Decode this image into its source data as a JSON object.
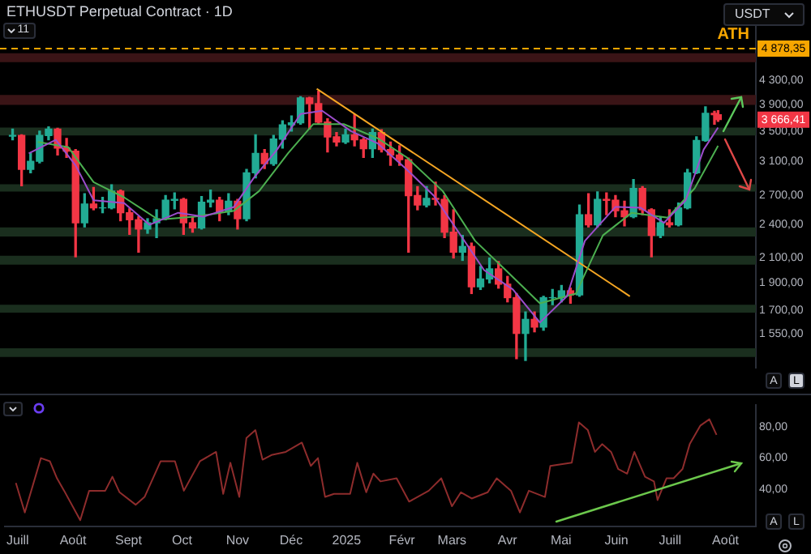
{
  "chart_data": [
    {
      "type": "candlestick",
      "title": "ETHUSDT Perpetual Contract · 1D",
      "log": true,
      "grid": false,
      "legend": false,
      "tick_labels": "y",
      "xlim": [
        "2024-06-24",
        "2025-08-18"
      ],
      "ylim": [
        1350,
        5700
      ],
      "yticks": [
        {
          "value": 1550,
          "label": "1 550,00"
        },
        {
          "value": 1700,
          "label": "1 700,00"
        },
        {
          "value": 1900,
          "label": "1 900,00"
        },
        {
          "value": 2100,
          "label": "2 100,00"
        },
        {
          "value": 2400,
          "label": "2 400,00"
        },
        {
          "value": 2700,
          "label": "2 700,00"
        },
        {
          "value": 3100,
          "label": "3 100,00"
        },
        {
          "value": 3500,
          "label": "3 500,00"
        },
        {
          "value": 3900,
          "label": "3 900,00"
        },
        {
          "value": 4300,
          "label": "4 300,00"
        }
      ],
      "x": [
        "2024-07-01",
        "2024-07-06",
        "2024-07-11",
        "2024-07-16",
        "2024-07-21",
        "2024-07-26",
        "2024-07-31",
        "2024-08-05",
        "2024-08-10",
        "2024-08-15",
        "2024-08-20",
        "2024-08-25",
        "2024-08-30",
        "2024-09-04",
        "2024-09-09",
        "2024-09-14",
        "2024-09-19",
        "2024-09-24",
        "2024-09-29",
        "2024-10-04",
        "2024-10-09",
        "2024-10-14",
        "2024-10-19",
        "2024-10-24",
        "2024-10-29",
        "2024-11-03",
        "2024-11-08",
        "2024-11-13",
        "2024-11-18",
        "2024-11-23",
        "2024-11-28",
        "2024-12-03",
        "2024-12-08",
        "2024-12-13",
        "2024-12-18",
        "2024-12-23",
        "2024-12-28",
        "2025-01-02",
        "2025-01-07",
        "2025-01-12",
        "2025-01-17",
        "2025-01-22",
        "2025-01-27",
        "2025-02-01",
        "2025-02-06",
        "2025-02-11",
        "2025-02-16",
        "2025-02-21",
        "2025-02-26",
        "2025-03-03",
        "2025-03-08",
        "2025-03-13",
        "2025-03-18",
        "2025-03-23",
        "2025-03-28",
        "2025-04-02",
        "2025-04-07",
        "2025-04-12",
        "2025-04-17",
        "2025-04-22",
        "2025-04-27",
        "2025-05-02",
        "2025-05-07",
        "2025-05-12",
        "2025-05-17",
        "2025-05-22",
        "2025-05-27",
        "2025-06-01",
        "2025-06-06",
        "2025-06-11",
        "2025-06-16",
        "2025-06-21",
        "2025-06-26",
        "2025-07-01",
        "2025-07-06",
        "2025-07-11",
        "2025-07-16",
        "2025-07-21",
        "2025-07-26",
        "2025-07-28"
      ],
      "ohlc": [
        [
          3430,
          3530,
          3380,
          3440
        ],
        [
          3440,
          3450,
          2810,
          3000
        ],
        [
          3000,
          3200,
          2960,
          3100
        ],
        [
          3100,
          3500,
          3080,
          3440
        ],
        [
          3440,
          3560,
          3380,
          3530
        ],
        [
          3530,
          3540,
          3180,
          3270
        ],
        [
          3270,
          3400,
          3150,
          3230
        ],
        [
          3230,
          3250,
          2110,
          2420
        ],
        [
          2420,
          2720,
          2380,
          2610
        ],
        [
          2610,
          2790,
          2550,
          2570
        ],
        [
          2570,
          2680,
          2520,
          2570
        ],
        [
          2570,
          2820,
          2560,
          2750
        ],
        [
          2750,
          2760,
          2440,
          2520
        ],
        [
          2520,
          2560,
          2310,
          2450
        ],
        [
          2450,
          2480,
          2150,
          2360
        ],
        [
          2360,
          2460,
          2320,
          2420
        ],
        [
          2420,
          2550,
          2280,
          2460
        ],
        [
          2460,
          2700,
          2450,
          2650
        ],
        [
          2650,
          2730,
          2560,
          2660
        ],
        [
          2660,
          2670,
          2310,
          2420
        ],
        [
          2420,
          2480,
          2330,
          2370
        ],
        [
          2370,
          2690,
          2360,
          2630
        ],
        [
          2630,
          2760,
          2580,
          2650
        ],
        [
          2650,
          2680,
          2440,
          2530
        ],
        [
          2530,
          2720,
          2500,
          2640
        ],
        [
          2640,
          2660,
          2360,
          2460
        ],
        [
          2460,
          3000,
          2440,
          2960
        ],
        [
          2960,
          3450,
          2900,
          3200
        ],
        [
          3200,
          3250,
          3010,
          3070
        ],
        [
          3070,
          3440,
          3050,
          3390
        ],
        [
          3390,
          3650,
          3270,
          3590
        ],
        [
          3590,
          3720,
          3500,
          3620
        ],
        [
          3620,
          4020,
          3600,
          4000
        ],
        [
          4000,
          4010,
          3530,
          3910
        ],
        [
          3910,
          4110,
          3600,
          3630
        ],
        [
          3630,
          3680,
          3220,
          3420
        ],
        [
          3420,
          3480,
          3300,
          3350
        ],
        [
          3350,
          3530,
          3330,
          3450
        ],
        [
          3450,
          3740,
          3300,
          3380
        ],
        [
          3380,
          3400,
          3150,
          3260
        ],
        [
          3260,
          3530,
          3150,
          3480
        ],
        [
          3480,
          3520,
          3220,
          3250
        ],
        [
          3250,
          3350,
          3050,
          3180
        ],
        [
          3180,
          3300,
          3050,
          3120
        ],
        [
          3120,
          3140,
          2150,
          2700
        ],
        [
          2700,
          2800,
          2550,
          2600
        ],
        [
          2600,
          2800,
          2580,
          2670
        ],
        [
          2670,
          2850,
          2600,
          2660
        ],
        [
          2660,
          2700,
          2280,
          2330
        ],
        [
          2330,
          2550,
          2100,
          2150
        ],
        [
          2150,
          2300,
          2080,
          2200
        ],
        [
          2200,
          2230,
          1820,
          1870
        ],
        [
          1870,
          2030,
          1850,
          1930
        ],
        [
          1930,
          2100,
          1900,
          2010
        ],
        [
          2010,
          2070,
          1860,
          1890
        ],
        [
          1890,
          1950,
          1760,
          1790
        ],
        [
          1790,
          1820,
          1400,
          1550
        ],
        [
          1550,
          1690,
          1390,
          1640
        ],
        [
          1640,
          1690,
          1560,
          1590
        ],
        [
          1590,
          1800,
          1570,
          1790
        ],
        [
          1790,
          1850,
          1740,
          1790
        ],
        [
          1790,
          1880,
          1760,
          1840
        ],
        [
          1840,
          1860,
          1750,
          1810
        ],
        [
          1810,
          2600,
          1800,
          2500
        ],
        [
          2500,
          2720,
          2380,
          2400
        ],
        [
          2400,
          2740,
          2380,
          2660
        ],
        [
          2660,
          2730,
          2500,
          2650
        ],
        [
          2650,
          2700,
          2480,
          2540
        ],
        [
          2540,
          2640,
          2390,
          2480
        ],
        [
          2480,
          2880,
          2470,
          2780
        ],
        [
          2780,
          2800,
          2500,
          2550
        ],
        [
          2550,
          2560,
          2110,
          2300
        ],
        [
          2300,
          2480,
          2280,
          2420
        ],
        [
          2420,
          2550,
          2380,
          2400
        ],
        [
          2400,
          2620,
          2390,
          2570
        ],
        [
          2570,
          3000,
          2560,
          2960
        ],
        [
          2960,
          3420,
          2950,
          3370
        ],
        [
          3370,
          3860,
          3360,
          3760
        ],
        [
          3760,
          3790,
          3600,
          3740
        ],
        [
          3740,
          3800,
          3640,
          3666.41
        ]
      ],
      "series": [
        {
          "type": "line",
          "color": "#9c4dcc",
          "x": [
            "2024-07-10",
            "2024-07-25",
            "2024-08-05",
            "2024-08-15",
            "2024-09-01",
            "2024-09-15",
            "2024-10-01",
            "2024-10-15",
            "2024-11-01",
            "2024-11-12",
            "2024-11-25",
            "2024-12-08",
            "2024-12-20",
            "2025-01-05",
            "2025-01-20",
            "2025-02-05",
            "2025-02-20",
            "2025-03-05",
            "2025-03-20",
            "2025-04-05",
            "2025-04-20",
            "2025-05-05",
            "2025-05-15",
            "2025-06-01",
            "2025-06-15",
            "2025-06-28",
            "2025-07-10",
            "2025-07-20",
            "2025-07-28"
          ],
          "values": [
            3200,
            3380,
            3050,
            2650,
            2620,
            2400,
            2520,
            2480,
            2580,
            2900,
            3250,
            3750,
            3800,
            3500,
            3330,
            3000,
            2700,
            2350,
            2000,
            1850,
            1620,
            1800,
            2250,
            2580,
            2570,
            2420,
            2650,
            3250,
            3550
          ]
        },
        {
          "type": "line",
          "color": "#4caf50",
          "x": [
            "2024-07-15",
            "2024-08-01",
            "2024-08-15",
            "2024-09-01",
            "2024-09-20",
            "2024-10-10",
            "2024-11-01",
            "2024-11-15",
            "2024-12-01",
            "2024-12-15",
            "2025-01-01",
            "2025-01-20",
            "2025-02-05",
            "2025-02-25",
            "2025-03-15",
            "2025-04-01",
            "2025-04-20",
            "2025-05-10",
            "2025-05-25",
            "2025-06-10",
            "2025-06-30",
            "2025-07-15",
            "2025-07-28"
          ],
          "values": [
            3350,
            3280,
            2850,
            2680,
            2450,
            2480,
            2540,
            2750,
            3200,
            3600,
            3600,
            3400,
            3150,
            2750,
            2250,
            2000,
            1750,
            1820,
            2300,
            2520,
            2470,
            2780,
            3300
          ]
        },
        {
          "type": "line",
          "color": "#f5a623",
          "x": [
            "2024-12-17",
            "2025-06-09"
          ],
          "values": [
            4150,
            1800
          ]
        }
      ],
      "bands": [
        {
          "axis": "y",
          "from": 4620,
          "to": 4790,
          "color": "#3a1416"
        },
        {
          "axis": "y",
          "from": 3890,
          "to": 4050,
          "color": "#3a1416"
        },
        {
          "axis": "y",
          "from": 3440,
          "to": 3550,
          "color": "#1a2e1e"
        },
        {
          "axis": "y",
          "from": 2745,
          "to": 2825,
          "color": "#1a2e1e"
        },
        {
          "axis": "y",
          "from": 2290,
          "to": 2375,
          "color": "#1a2e1e"
        },
        {
          "axis": "y",
          "from": 2045,
          "to": 2120,
          "color": "#1a2e1e"
        },
        {
          "axis": "y",
          "from": 1685,
          "to": 1740,
          "color": "#1a2e1e"
        },
        {
          "axis": "y",
          "from": 1410,
          "to": 1460,
          "color": "#1a2e1e"
        }
      ],
      "ref_lines": [
        {
          "axis": "y",
          "value": 4878.35,
          "label": "ATH",
          "color": "#f7a600",
          "line_style": "dashed"
        }
      ],
      "annotations": [
        {
          "text": "4 878,35",
          "y": 4878.35
        },
        {
          "text": "3 666,41",
          "y": 3666.41
        },
        "USDT",
        "11",
        "A",
        "L"
      ]
    },
    {
      "type": "line",
      "color": "#8e2c2c",
      "grid": false,
      "legend": false,
      "annotations": [
        "A",
        "L"
      ],
      "xlim": [
        "2024-06-24",
        "2025-08-18"
      ],
      "xticks": [
        {
          "value": "2024-07-01",
          "label": "Juill"
        },
        {
          "value": "2024-08-01",
          "label": "Août"
        },
        {
          "value": "2024-09-01",
          "label": "Sept"
        },
        {
          "value": "2024-10-01",
          "label": "Oct"
        },
        {
          "value": "2024-11-01",
          "label": "Nov"
        },
        {
          "value": "2024-12-01",
          "label": "Déc"
        },
        {
          "value": "2025-01-01",
          "label": "2025"
        },
        {
          "value": "2025-02-01",
          "label": "Févr"
        },
        {
          "value": "2025-03-01",
          "label": "Mars"
        },
        {
          "value": "2025-04-01",
          "label": "Avr"
        },
        {
          "value": "2025-05-01",
          "label": "Mai"
        },
        {
          "value": "2025-06-01",
          "label": "Juin"
        },
        {
          "value": "2025-07-01",
          "label": "Juill"
        },
        {
          "value": "2025-08-01",
          "label": "Août"
        }
      ],
      "ylim": [
        16,
        94
      ],
      "yticks": [
        {
          "value": 40,
          "label": "40,00"
        },
        {
          "value": 60,
          "label": "60,00"
        },
        {
          "value": 80,
          "label": "80,00"
        }
      ],
      "x": [
        "2024-06-30",
        "2024-07-05",
        "2024-07-14",
        "2024-07-19",
        "2024-07-23",
        "2024-07-27",
        "2024-08-05",
        "2024-08-10",
        "2024-08-19",
        "2024-08-23",
        "2024-08-27",
        "2024-09-05",
        "2024-09-10",
        "2024-09-19",
        "2024-09-27",
        "2024-10-02",
        "2024-10-11",
        "2024-10-20",
        "2024-10-24",
        "2024-10-28",
        "2024-11-02",
        "2024-11-06",
        "2024-11-11",
        "2024-11-15",
        "2024-11-20",
        "2024-11-28",
        "2024-12-07",
        "2024-12-12",
        "2024-12-16",
        "2024-12-20",
        "2024-12-25",
        "2025-01-03",
        "2025-01-07",
        "2025-01-12",
        "2025-01-16",
        "2025-01-20",
        "2025-01-29",
        "2025-02-05",
        "2025-02-16",
        "2025-02-23",
        "2025-03-01",
        "2025-03-06",
        "2025-03-12",
        "2025-03-21",
        "2025-03-26",
        "2025-04-03",
        "2025-04-08",
        "2025-04-13",
        "2025-04-22",
        "2025-04-25",
        "2025-05-07",
        "2025-05-11",
        "2025-05-16",
        "2025-05-20",
        "2025-05-24",
        "2025-05-29",
        "2025-06-02",
        "2025-06-07",
        "2025-06-11",
        "2025-06-17",
        "2025-06-22",
        "2025-06-24",
        "2025-06-29",
        "2025-07-03",
        "2025-07-08",
        "2025-07-12",
        "2025-07-18",
        "2025-07-23",
        "2025-07-27"
      ],
      "values": [
        44,
        25,
        60,
        58,
        47,
        39,
        20,
        39,
        39,
        48,
        38,
        30,
        35,
        58,
        58,
        39,
        58,
        64,
        37,
        57,
        35,
        73,
        78,
        59,
        62,
        64,
        70,
        55,
        60,
        35,
        37,
        37,
        57,
        38,
        50,
        45,
        47,
        32,
        39,
        47,
        29,
        38,
        34,
        38,
        47,
        39,
        25,
        39,
        35,
        55,
        57,
        83,
        78,
        64,
        69,
        64,
        53,
        50,
        64,
        48,
        45,
        33,
        47,
        47,
        53,
        69,
        81,
        85,
        75
      ]
    }
  ]
}
